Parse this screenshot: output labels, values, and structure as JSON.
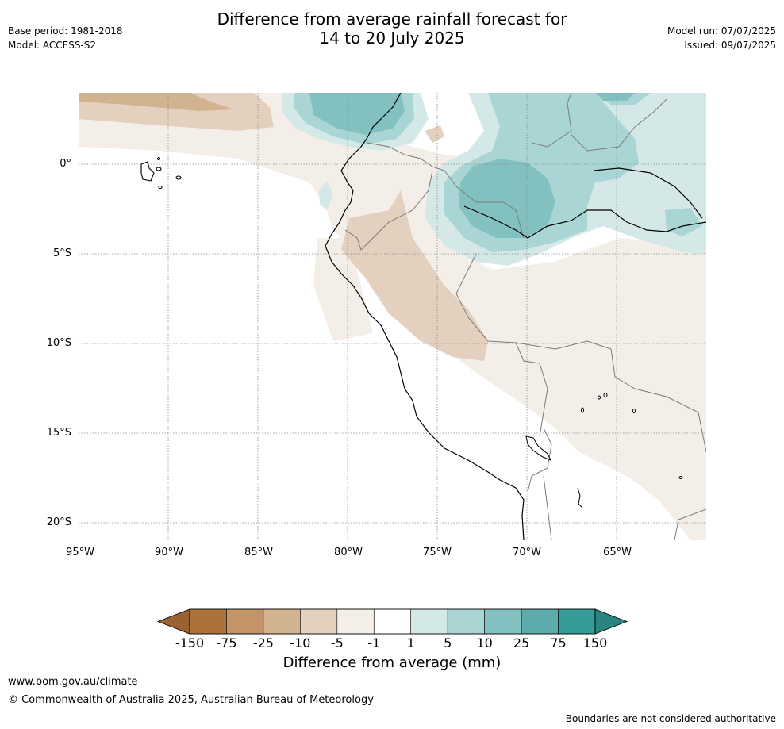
{
  "header": {
    "title_line1": "Difference from average rainfall forecast for",
    "title_line2": "14 to 20 July 2025",
    "base_period": "Base period: 1981-2018",
    "model": "Model: ACCESS-S2",
    "model_run": "Model run: 07/07/2025",
    "issued": "Issued: 09/07/2025"
  },
  "map": {
    "lat_labels": [
      "0°",
      "5°S",
      "10°S",
      "15°S",
      "20°S"
    ],
    "lon_labels": [
      "95°W",
      "90°W",
      "85°W",
      "80°W",
      "75°W",
      "70°W",
      "65°W"
    ]
  },
  "colorbar": {
    "label": "Difference from average (mm)",
    "ticks": [
      "-150",
      "-75",
      "-25",
      "-10",
      "-5",
      "-1",
      "1",
      "5",
      "10",
      "25",
      "75",
      "150"
    ],
    "colors": [
      "#ad7239",
      "#c49469",
      "#d2b390",
      "#e4d0bf",
      "#f4eee8",
      "#ffffff",
      "#d4e9e7",
      "#a9d5d4",
      "#83c1c1",
      "#5cacab",
      "#359c98"
    ],
    "under_color": "#9a6231",
    "over_color": "#2a8580"
  },
  "footer": {
    "url": "www.bom.gov.au/climate",
    "copyright": "© Commonwealth of Australia 2025, Australian Bureau of Meteorology",
    "disclaimer": "Boundaries are not considered authoritative"
  }
}
